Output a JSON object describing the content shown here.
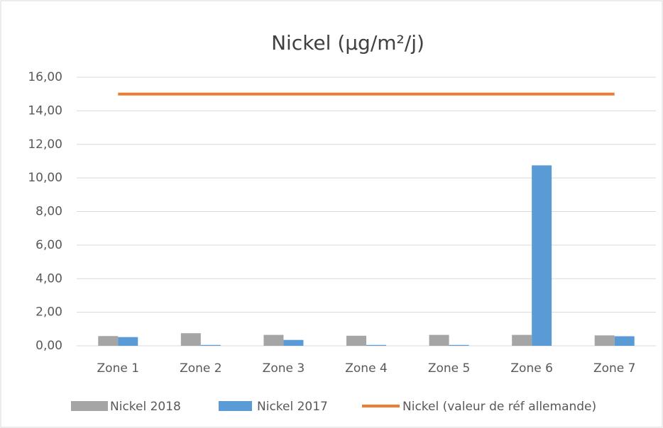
{
  "chart_data": {
    "type": "bar",
    "title": "Nickel (µg/m²/j)",
    "categories": [
      "Zone 1",
      "Zone 2",
      "Zone 3",
      "Zone 4",
      "Zone 5",
      "Zone 6",
      "Zone 7"
    ],
    "series": [
      {
        "name": "Nickel 2018",
        "color": "#a5a5a5",
        "type": "bar",
        "values": [
          0.58,
          0.75,
          0.65,
          0.6,
          0.65,
          0.65,
          0.62
        ]
      },
      {
        "name": "Nickel 2017",
        "color": "#5b9bd5",
        "type": "bar",
        "values": [
          0.52,
          0.05,
          0.35,
          0.05,
          0.05,
          10.75,
          0.57
        ]
      },
      {
        "name": "Nickel (valeur de réf allemande)",
        "color": "#ed7d31",
        "type": "line",
        "values": [
          15,
          15,
          15,
          15,
          15,
          15,
          15
        ]
      }
    ],
    "ylim": [
      0,
      16
    ],
    "yticks": [
      {
        "value": 0,
        "label": "0,00"
      },
      {
        "value": 2,
        "label": "2,00"
      },
      {
        "value": 4,
        "label": "4,00"
      },
      {
        "value": 6,
        "label": "6,00"
      },
      {
        "value": 8,
        "label": "8,00"
      },
      {
        "value": 10,
        "label": "10,00"
      },
      {
        "value": 12,
        "label": "12,00"
      },
      {
        "value": 14,
        "label": "14,00"
      },
      {
        "value": 16,
        "label": "16,00"
      }
    ],
    "grid": true
  }
}
